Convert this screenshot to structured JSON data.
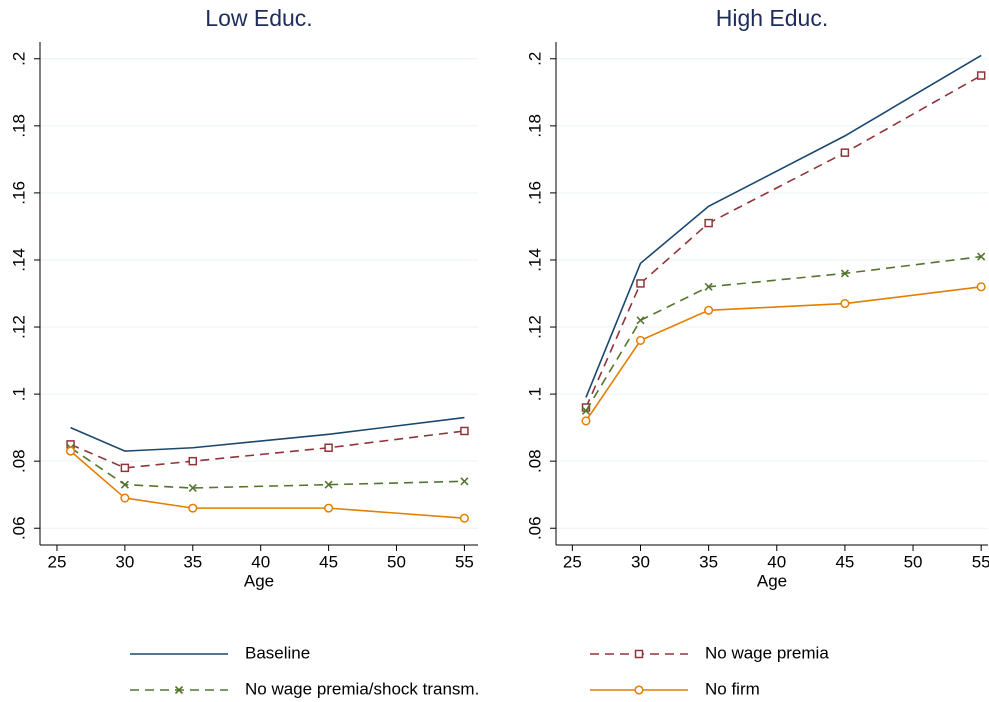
{
  "chart_data": [
    {
      "type": "line",
      "title": "Low Educ.",
      "x_label": "Age",
      "x": [
        26,
        30,
        35,
        45,
        55
      ],
      "xlim": [
        23.75,
        56
      ],
      "xticks": [
        25,
        30,
        35,
        40,
        45,
        50,
        55
      ],
      "ylim": [
        0.055,
        0.205
      ],
      "yticks": [
        {
          "value": 0.06,
          "label": ".06"
        },
        {
          "value": 0.08,
          "label": ".08"
        },
        {
          "value": 0.1,
          "label": ".1"
        },
        {
          "value": 0.12,
          "label": ".12"
        },
        {
          "value": 0.14,
          "label": ".14"
        },
        {
          "value": 0.16,
          "label": ".16"
        },
        {
          "value": 0.18,
          "label": ".18"
        },
        {
          "value": 0.2,
          "label": ".2"
        }
      ],
      "grid": true,
      "legend": "bottom",
      "series": [
        {
          "name": "Baseline",
          "color": "#1a476f",
          "dash": "solid",
          "marker": "none",
          "values": [
            0.09,
            0.083,
            0.084,
            0.088,
            0.093
          ]
        },
        {
          "name": "No wage premia",
          "color": "#90353b",
          "dash": "dashed",
          "marker": "square",
          "values": [
            0.085,
            0.078,
            0.08,
            0.084,
            0.089
          ]
        },
        {
          "name": "No wage premia/shock transm.",
          "color": "#55752f",
          "dash": "dashed",
          "marker": "x",
          "values": [
            0.084,
            0.073,
            0.072,
            0.073,
            0.074
          ]
        },
        {
          "name": "No firm",
          "color": "#e37e00",
          "dash": "solid",
          "marker": "circle",
          "values": [
            0.083,
            0.069,
            0.066,
            0.066,
            0.063
          ]
        }
      ]
    },
    {
      "type": "line",
      "title": "High Educ.",
      "x_label": "Age",
      "x": [
        26,
        30,
        35,
        45,
        55
      ],
      "xlim": [
        23.8,
        55.5
      ],
      "xticks": [
        25,
        30,
        35,
        40,
        45,
        50,
        55
      ],
      "ylim": [
        0.055,
        0.205
      ],
      "yticks": [
        {
          "value": 0.06,
          "label": ".06"
        },
        {
          "value": 0.08,
          "label": ".08"
        },
        {
          "value": 0.1,
          "label": ".1"
        },
        {
          "value": 0.12,
          "label": ".12"
        },
        {
          "value": 0.14,
          "label": ".14"
        },
        {
          "value": 0.16,
          "label": ".16"
        },
        {
          "value": 0.18,
          "label": ".18"
        },
        {
          "value": 0.2,
          "label": ".2"
        }
      ],
      "grid": true,
      "series": [
        {
          "color": "#1a476f",
          "dash": "solid",
          "marker": "none",
          "values": [
            0.099,
            0.139,
            0.156,
            0.177,
            0.201
          ]
        },
        {
          "color": "#90353b",
          "dash": "dashed",
          "marker": "square",
          "values": [
            0.096,
            0.133,
            0.151,
            0.172,
            0.195
          ]
        },
        {
          "color": "#55752f",
          "dash": "dashed",
          "marker": "x",
          "values": [
            0.095,
            0.122,
            0.132,
            0.136,
            0.141
          ]
        },
        {
          "color": "#e37e00",
          "dash": "solid",
          "marker": "circle",
          "values": [
            0.092,
            0.116,
            0.125,
            0.127,
            0.132
          ]
        }
      ]
    }
  ]
}
